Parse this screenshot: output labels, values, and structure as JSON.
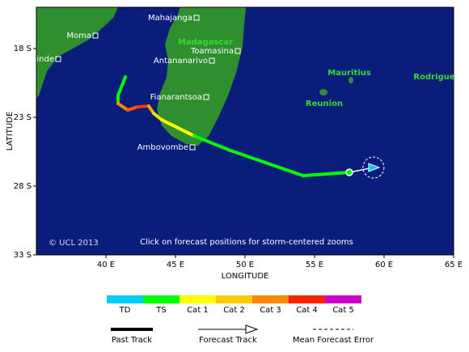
{
  "map": {
    "xlim": [
      35,
      65
    ],
    "ylim": [
      -33,
      -15
    ],
    "xticks": [
      {
        "value": 40,
        "label": "40 E"
      },
      {
        "value": 45,
        "label": "45 E"
      },
      {
        "value": 50,
        "label": "50 E"
      },
      {
        "value": 55,
        "label": "55 E"
      },
      {
        "value": 60,
        "label": "60 E"
      },
      {
        "value": 65,
        "label": "65 E"
      }
    ],
    "yticks": [
      {
        "value": -18,
        "label": "18 S"
      },
      {
        "value": -23,
        "label": "23 S"
      },
      {
        "value": -28,
        "label": "28 S"
      },
      {
        "value": -33,
        "label": "33 S"
      }
    ],
    "xlabel": "LONGITUDE",
    "ylabel": "LATITUDE",
    "places": [
      "Mahajanga",
      "Moma",
      "Chinde",
      "Toamasina",
      "Antananarivo",
      "Fianarantsoa",
      "Ambovombe"
    ],
    "regions": [
      "Madagascar",
      "Mauritius",
      "Reunion",
      "Rodrigue"
    ],
    "copyright": "© UCL 2013",
    "note": "Click on forecast positions for storm-centered zooms",
    "past_track": {
      "lon": [
        41.4,
        40.87,
        40.87,
        41.57,
        42.27,
        43.08,
        43.43,
        44.01,
        46.34,
        48.95,
        54.19,
        57.5
      ],
      "lat": [
        -20.06,
        -21.41,
        -22.0,
        -22.47,
        -22.24,
        -22.18,
        -22.71,
        -23.18,
        -24.35,
        -25.41,
        -27.24,
        -27.0
      ],
      "colors": [
        "#00ff00",
        "#00ff00",
        "#ff8800",
        "#ff5500",
        "#ff3300",
        "#ffaa00",
        "#ffd800",
        "#ffff00",
        "#00ff00",
        "#00ff00",
        "#00ff00",
        "#00ff00"
      ]
    },
    "forecast_track": {
      "lon": [
        57.5,
        59.24
      ],
      "lat": [
        -27.0,
        -26.65
      ]
    }
  },
  "legend": {
    "categories": [
      {
        "name": "TD",
        "color": "#00ccff"
      },
      {
        "name": "TS",
        "color": "#00ff00"
      },
      {
        "name": "Cat 1",
        "color": "#ffff00"
      },
      {
        "name": "Cat 2",
        "color": "#ffcc00"
      },
      {
        "name": "Cat 3",
        "color": "#ff8800"
      },
      {
        "name": "Cat 4",
        "color": "#ff2200"
      },
      {
        "name": "Cat 5",
        "color": "#cc00cc"
      }
    ],
    "past": "Past Track",
    "forecast": "Forecast Track",
    "error": "Mean Forecast Error"
  }
}
